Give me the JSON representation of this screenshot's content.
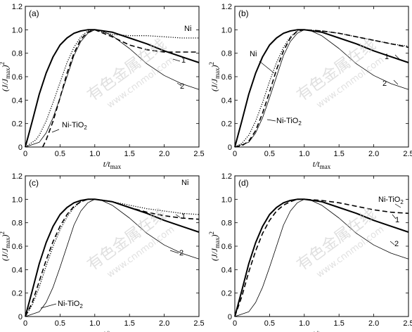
{
  "chart_data": [
    {
      "type": "line",
      "panel_label": "(a)",
      "xlabel": "t/t_max",
      "ylabel": "(J/J_max)^2",
      "xlim": [
        0,
        2.5
      ],
      "ylim": [
        0,
        1.2
      ],
      "xticks": [
        "0",
        "0.5",
        "1.0",
        "1.5",
        "2.0",
        "2.5"
      ],
      "yticks": [
        "0",
        "0.2",
        "0.4",
        "0.6",
        "0.8",
        "1.0",
        "1.2"
      ],
      "series": [
        {
          "name": "1",
          "style": "thick-solid",
          "x": [
            0,
            0.1,
            0.2,
            0.3,
            0.4,
            0.5,
            0.6,
            0.7,
            0.8,
            0.9,
            1.0,
            1.25,
            1.5,
            1.75,
            2.0,
            2.25,
            2.5
          ],
          "y": [
            0,
            0.22,
            0.45,
            0.63,
            0.77,
            0.87,
            0.93,
            0.97,
            0.99,
            1.0,
            1.0,
            0.98,
            0.93,
            0.88,
            0.82,
            0.77,
            0.72
          ]
        },
        {
          "name": "2",
          "style": "thin-solid",
          "x": [
            0,
            0.2,
            0.3,
            0.4,
            0.5,
            0.6,
            0.7,
            0.8,
            0.9,
            1.0,
            1.1,
            1.25,
            1.5,
            1.75,
            2.0,
            2.25,
            2.5
          ],
          "y": [
            0,
            0.04,
            0.12,
            0.25,
            0.42,
            0.6,
            0.78,
            0.9,
            0.97,
            1.0,
            0.99,
            0.95,
            0.84,
            0.71,
            0.61,
            0.54,
            0.49
          ]
        },
        {
          "name": "Ni",
          "style": "dotted",
          "x": [
            0,
            0.15,
            0.2,
            0.3,
            0.4,
            0.5,
            0.6,
            0.7,
            0.8,
            0.9,
            1.0,
            1.25,
            1.5,
            1.75,
            2.0,
            2.25,
            2.5
          ],
          "y": [
            0,
            0.06,
            0.1,
            0.22,
            0.38,
            0.55,
            0.72,
            0.85,
            0.94,
            0.99,
            1.0,
            0.96,
            0.95,
            0.95,
            0.94,
            0.93,
            0.93
          ]
        },
        {
          "name": "Ni-TiO2",
          "style": "dashed",
          "x": [
            0.25,
            0.3,
            0.4,
            0.5,
            0.6,
            0.7,
            0.8,
            0.9,
            1.0,
            1.25,
            1.5,
            1.75,
            2.0,
            2.25,
            2.5
          ],
          "y": [
            0,
            0.06,
            0.22,
            0.42,
            0.63,
            0.8,
            0.92,
            0.98,
            1.0,
            0.94,
            0.87,
            0.83,
            0.81,
            0.81,
            0.81
          ]
        }
      ]
    },
    {
      "type": "line",
      "panel_label": "(b)",
      "xlabel": "t/t_max",
      "ylabel": "(J/J_max)^2",
      "xlim": [
        0,
        2.5
      ],
      "ylim": [
        0,
        1.2
      ],
      "xticks": [
        "0",
        "0.5",
        "1.0",
        "1.5",
        "2.0",
        "2.5"
      ],
      "yticks": [
        "0",
        "0.2",
        "0.4",
        "0.6",
        "0.8",
        "1.0",
        "1.2"
      ],
      "series": [
        {
          "name": "1",
          "style": "thick-solid",
          "x": [
            0,
            0.1,
            0.2,
            0.3,
            0.4,
            0.5,
            0.6,
            0.7,
            0.8,
            0.9,
            1.0,
            1.25,
            1.5,
            1.75,
            2.0,
            2.25,
            2.5
          ],
          "y": [
            0,
            0.22,
            0.45,
            0.63,
            0.77,
            0.87,
            0.93,
            0.97,
            0.99,
            1.0,
            1.0,
            0.98,
            0.93,
            0.88,
            0.82,
            0.77,
            0.72
          ]
        },
        {
          "name": "2",
          "style": "thin-solid",
          "x": [
            0,
            0.2,
            0.3,
            0.4,
            0.5,
            0.6,
            0.7,
            0.8,
            0.9,
            1.0,
            1.1,
            1.25,
            1.5,
            1.75,
            2.0,
            2.25,
            2.5
          ],
          "y": [
            0,
            0.04,
            0.12,
            0.25,
            0.42,
            0.6,
            0.78,
            0.9,
            0.97,
            1.0,
            0.99,
            0.95,
            0.84,
            0.71,
            0.61,
            0.54,
            0.49
          ]
        },
        {
          "name": "Ni",
          "style": "dotted",
          "x": [
            0,
            0.1,
            0.2,
            0.3,
            0.4,
            0.5,
            0.6,
            0.7,
            0.8,
            0.9,
            1.0,
            1.25,
            1.5,
            1.75,
            2.0,
            2.25,
            2.5
          ],
          "y": [
            0,
            0.03,
            0.1,
            0.22,
            0.38,
            0.56,
            0.72,
            0.85,
            0.94,
            0.99,
            1.0,
            0.99,
            0.97,
            0.94,
            0.91,
            0.88,
            0.86
          ]
        },
        {
          "name": "Ni-TiO2",
          "style": "dashed",
          "x": [
            0,
            0.1,
            0.2,
            0.3,
            0.4,
            0.5,
            0.6,
            0.7,
            0.8,
            0.9,
            1.0,
            1.25,
            1.5,
            1.75,
            2.0,
            2.25,
            2.5
          ],
          "y": [
            0,
            0.01,
            0.05,
            0.14,
            0.29,
            0.47,
            0.66,
            0.82,
            0.93,
            0.99,
            1.0,
            0.99,
            0.97,
            0.94,
            0.91,
            0.88,
            0.85
          ]
        }
      ]
    },
    {
      "type": "line",
      "panel_label": "(c)",
      "xlabel": "t/t_max",
      "ylabel": "(J/J_max)^2",
      "xlim": [
        0,
        2.5
      ],
      "ylim": [
        0,
        1.2
      ],
      "xticks": [
        "0",
        "0.5",
        "1.0",
        "1.5",
        "2.0",
        "2.5"
      ],
      "yticks": [
        "0",
        "0.2",
        "0.4",
        "0.6",
        "0.8",
        "1.0",
        "1.2"
      ],
      "series": [
        {
          "name": "1",
          "style": "thick-solid",
          "x": [
            0,
            0.1,
            0.2,
            0.3,
            0.4,
            0.5,
            0.6,
            0.7,
            0.8,
            0.9,
            1.0,
            1.25,
            1.5,
            1.75,
            2.0,
            2.25,
            2.5
          ],
          "y": [
            0,
            0.22,
            0.45,
            0.63,
            0.77,
            0.87,
            0.93,
            0.97,
            0.99,
            1.0,
            1.0,
            0.98,
            0.93,
            0.88,
            0.82,
            0.77,
            0.72
          ]
        },
        {
          "name": "2",
          "style": "thin-solid",
          "x": [
            0,
            0.2,
            0.3,
            0.4,
            0.5,
            0.6,
            0.7,
            0.8,
            0.9,
            1.0,
            1.1,
            1.25,
            1.5,
            1.75,
            2.0,
            2.25,
            2.5
          ],
          "y": [
            0,
            0.04,
            0.12,
            0.25,
            0.42,
            0.6,
            0.78,
            0.9,
            0.97,
            1.0,
            0.99,
            0.95,
            0.84,
            0.71,
            0.61,
            0.54,
            0.49
          ]
        },
        {
          "name": "Ni",
          "style": "dotted",
          "x": [
            0,
            0.1,
            0.2,
            0.3,
            0.4,
            0.5,
            0.6,
            0.7,
            0.8,
            0.9,
            1.0,
            1.25,
            1.5,
            1.75,
            2.0,
            2.25,
            2.5
          ],
          "y": [
            0,
            0.1,
            0.25,
            0.43,
            0.6,
            0.74,
            0.85,
            0.93,
            0.98,
            1.0,
            1.0,
            0.98,
            0.95,
            0.92,
            0.9,
            0.88,
            0.87
          ]
        },
        {
          "name": "Ni-TiO2",
          "style": "dashed",
          "x": [
            0,
            0.1,
            0.2,
            0.3,
            0.4,
            0.5,
            0.6,
            0.7,
            0.8,
            0.9,
            1.0,
            1.25,
            1.5,
            1.75,
            2.0,
            2.25,
            2.5
          ],
          "y": [
            0,
            0.12,
            0.3,
            0.48,
            0.64,
            0.77,
            0.87,
            0.94,
            0.98,
            1.0,
            1.0,
            0.98,
            0.93,
            0.89,
            0.86,
            0.84,
            0.83
          ]
        }
      ]
    },
    {
      "type": "line",
      "panel_label": "(d)",
      "xlabel": "t/t_max",
      "ylabel": "(J/J_max)^2",
      "xlim": [
        0,
        2.5
      ],
      "ylim": [
        0,
        1.2
      ],
      "xticks": [
        "0",
        "0.5",
        "1.0",
        "1.5",
        "2.0",
        "2.5"
      ],
      "yticks": [
        "0",
        "0.2",
        "0.4",
        "0.6",
        "0.8",
        "1.0",
        "1.2"
      ],
      "series": [
        {
          "name": "1",
          "style": "thick-solid",
          "x": [
            0,
            0.1,
            0.2,
            0.3,
            0.4,
            0.5,
            0.6,
            0.7,
            0.8,
            0.9,
            1.0,
            1.25,
            1.5,
            1.75,
            2.0,
            2.25,
            2.5
          ],
          "y": [
            0,
            0.22,
            0.45,
            0.63,
            0.77,
            0.87,
            0.93,
            0.97,
            0.99,
            1.0,
            1.0,
            0.98,
            0.93,
            0.88,
            0.82,
            0.77,
            0.72
          ]
        },
        {
          "name": "2",
          "style": "thin-solid",
          "x": [
            0,
            0.2,
            0.3,
            0.4,
            0.5,
            0.6,
            0.7,
            0.8,
            0.9,
            1.0,
            1.1,
            1.25,
            1.5,
            1.75,
            2.0,
            2.25,
            2.5
          ],
          "y": [
            0,
            0.04,
            0.12,
            0.25,
            0.42,
            0.6,
            0.78,
            0.9,
            0.97,
            1.0,
            0.99,
            0.95,
            0.84,
            0.71,
            0.61,
            0.54,
            0.49
          ]
        },
        {
          "name": "Ni-TiO2",
          "style": "dashed",
          "x": [
            0,
            0.1,
            0.2,
            0.3,
            0.4,
            0.5,
            0.6,
            0.7,
            0.8,
            0.9,
            1.0,
            1.25,
            1.5,
            1.75,
            2.0,
            2.25,
            2.5
          ],
          "y": [
            0,
            0.17,
            0.38,
            0.56,
            0.71,
            0.82,
            0.9,
            0.95,
            0.98,
            1.0,
            1.0,
            0.99,
            0.97,
            0.94,
            0.91,
            0.89,
            0.88
          ]
        }
      ]
    }
  ],
  "watermark": {
    "text1": "有色金属在线",
    "text2": "www.cnnmol.com"
  },
  "axis_text": {
    "y_main": "(J/J",
    "y_sub": "max",
    "y_end": ")",
    "y_sup": "2",
    "x_main": "t/t",
    "x_sub": "max"
  }
}
